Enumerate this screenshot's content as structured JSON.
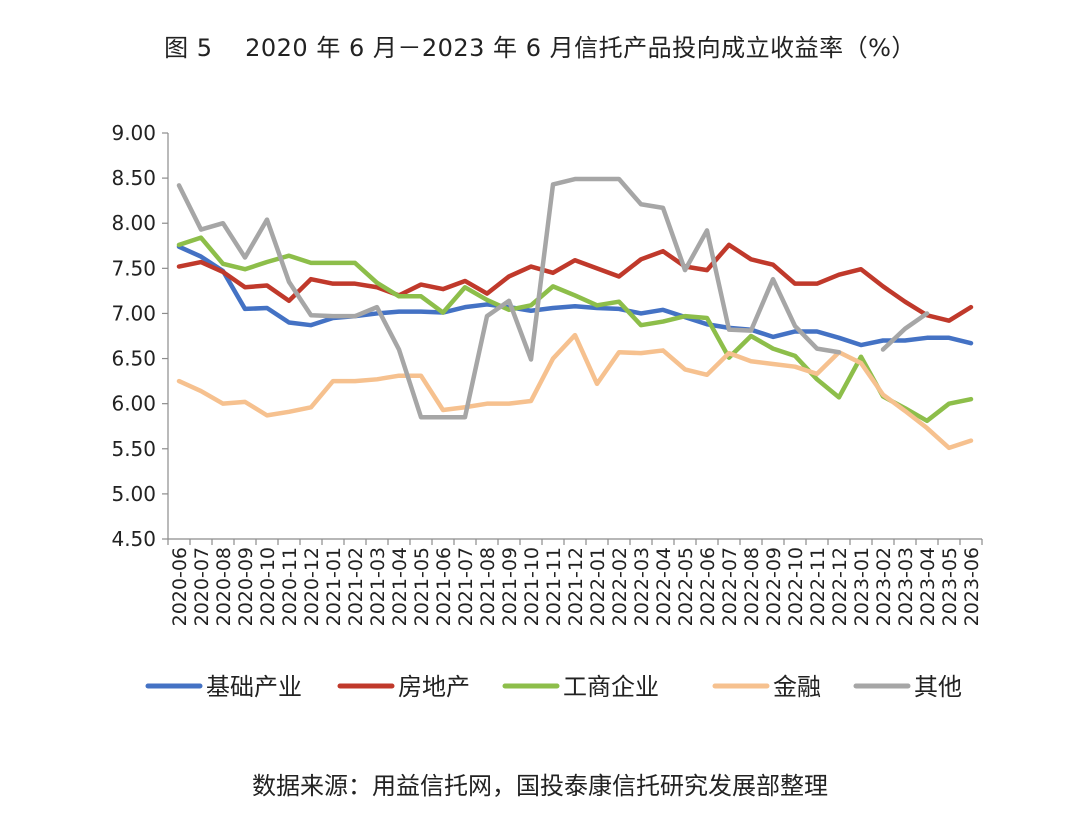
{
  "figure": {
    "title": "图 5　 2020 年 6 月－2023 年 6 月信托产品投向成立收益率（%）",
    "source": "数据来源：用益信托网，国投泰康信托研究发展部整理"
  },
  "chart_data": {
    "type": "line",
    "ylim": [
      4.5,
      9.0
    ],
    "ytick_step": 0.5,
    "ytick_labels": [
      "4.50",
      "5.00",
      "5.50",
      "6.00",
      "6.50",
      "7.00",
      "7.50",
      "8.00",
      "8.50",
      "9.00"
    ],
    "grid": false,
    "legend_position": "bottom",
    "categories": [
      "2020-06",
      "2020-07",
      "2020-08",
      "2020-09",
      "2020-10",
      "2020-11",
      "2020-12",
      "2021-01",
      "2021-02",
      "2021-03",
      "2021-04",
      "2021-05",
      "2021-06",
      "2021-07",
      "2021-08",
      "2021-09",
      "2021-10",
      "2021-11",
      "2021-12",
      "2022-01",
      "2022-02",
      "2022-03",
      "2022-04",
      "2022-05",
      "2022-06",
      "2022-07",
      "2022-08",
      "2022-09",
      "2022-10",
      "2022-11",
      "2022-12",
      "2023-01",
      "2023-02",
      "2023-03",
      "2023-04",
      "2023-05",
      "2023-06"
    ],
    "series": [
      {
        "name": "基础产业",
        "color": "#4472C4",
        "values": [
          7.74,
          7.63,
          7.47,
          7.05,
          7.06,
          6.9,
          6.87,
          6.95,
          6.97,
          7.0,
          7.02,
          7.02,
          7.01,
          7.07,
          7.1,
          7.07,
          7.03,
          7.06,
          7.08,
          7.06,
          7.05,
          7.0,
          7.04,
          6.96,
          6.88,
          6.84,
          6.82,
          6.74,
          6.8,
          6.8,
          6.73,
          6.65,
          6.7,
          6.7,
          6.73,
          6.73,
          6.67
        ]
      },
      {
        "name": "房地产",
        "color": "#C0392B",
        "values": [
          7.52,
          7.57,
          7.46,
          7.29,
          7.31,
          7.14,
          7.38,
          7.33,
          7.33,
          7.29,
          7.2,
          7.32,
          7.27,
          7.36,
          7.22,
          7.41,
          7.52,
          7.45,
          7.59,
          7.5,
          7.41,
          7.6,
          7.69,
          7.52,
          7.48,
          7.76,
          7.6,
          7.54,
          7.33,
          7.33,
          7.43,
          7.49,
          7.3,
          7.13,
          6.98,
          6.92,
          7.07
        ]
      },
      {
        "name": "工商企业",
        "color": "#8DBE4A",
        "values": [
          7.76,
          7.84,
          7.55,
          7.49,
          7.57,
          7.64,
          7.56,
          7.56,
          7.56,
          7.34,
          7.19,
          7.19,
          7.01,
          7.29,
          7.15,
          7.04,
          7.09,
          7.3,
          7.2,
          7.09,
          7.13,
          6.87,
          6.91,
          6.97,
          6.95,
          6.51,
          6.75,
          6.61,
          6.53,
          6.27,
          6.07,
          6.52,
          6.08,
          5.95,
          5.81,
          6.0,
          6.05
        ]
      },
      {
        "name": "金融",
        "color": "#F6C18F",
        "values": [
          6.25,
          6.14,
          6.0,
          6.02,
          5.87,
          5.91,
          5.96,
          6.25,
          6.25,
          6.27,
          6.31,
          6.31,
          5.93,
          5.96,
          6.0,
          6.0,
          6.03,
          6.5,
          6.76,
          6.22,
          6.57,
          6.56,
          6.59,
          6.38,
          6.32,
          6.56,
          6.47,
          6.44,
          6.41,
          6.33,
          6.57,
          6.45,
          6.1,
          5.92,
          5.73,
          5.51,
          5.59
        ]
      },
      {
        "name": "其他",
        "color": "#A6A6A6",
        "values": [
          8.42,
          7.93,
          8.0,
          7.62,
          8.04,
          7.35,
          6.98,
          6.97,
          6.97,
          7.07,
          6.6,
          5.85,
          5.85,
          5.85,
          6.97,
          7.14,
          6.49,
          8.43,
          8.49,
          8.49,
          8.49,
          8.21,
          8.17,
          7.48,
          7.92,
          6.82,
          6.81,
          7.38,
          6.86,
          6.61,
          6.57,
          null,
          6.6,
          6.83,
          7.0,
          null,
          null
        ]
      }
    ]
  }
}
